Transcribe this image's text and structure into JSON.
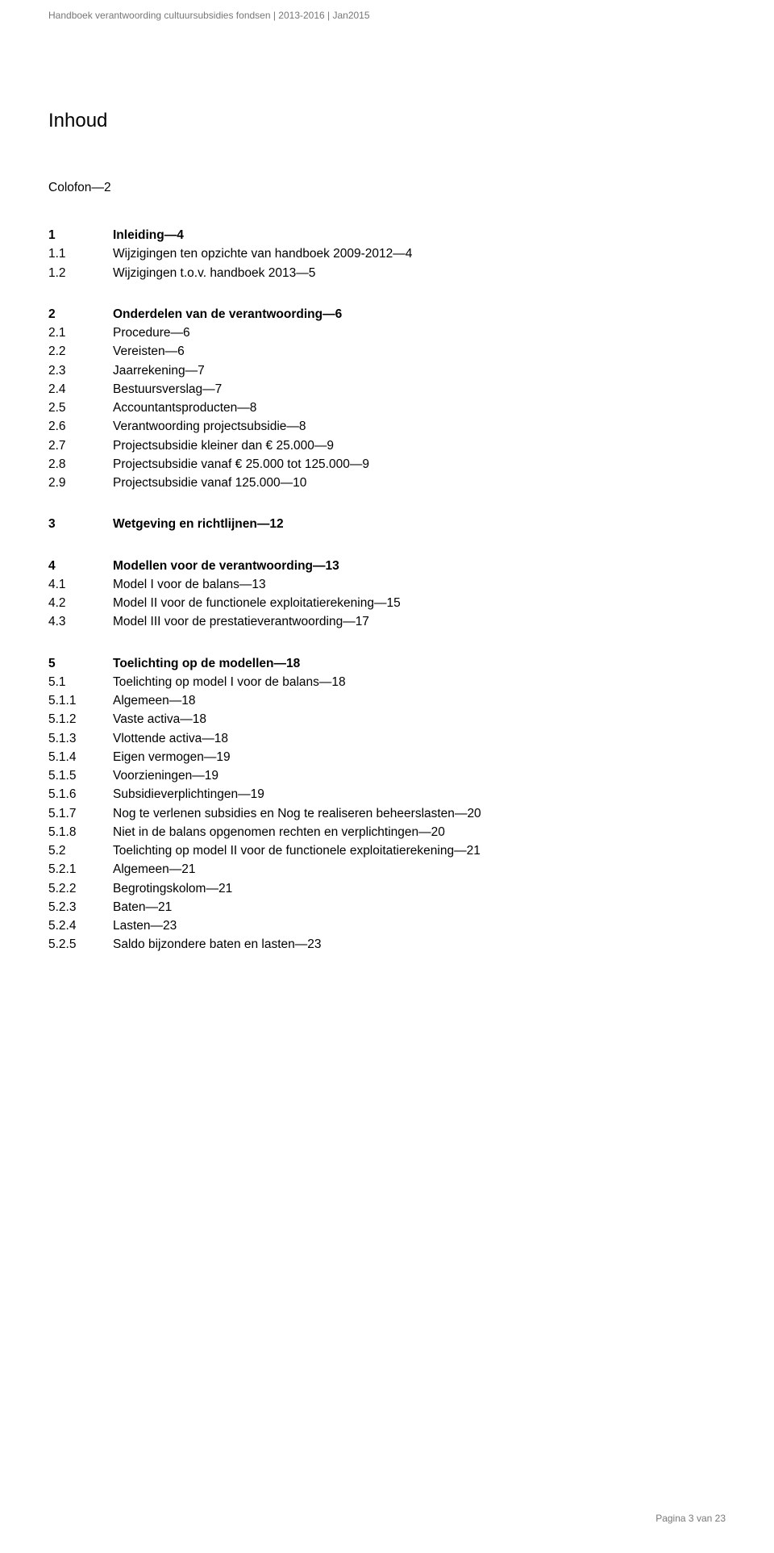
{
  "header": {
    "text": "Handboek verantwoording cultuursubsidies fondsen | 2013-2016 | Jan2015"
  },
  "heading": "Inhoud",
  "colofon": {
    "label": "Colofon",
    "page": "2"
  },
  "toc": [
    {
      "items": [
        {
          "num": "1",
          "text": "Inleiding",
          "page": "4",
          "bold": true
        },
        {
          "num": "1.1",
          "text": "Wijzigingen ten opzichte van handboek 2009-2012",
          "page": "4"
        },
        {
          "num": "1.2",
          "text": "Wijzigingen t.o.v. handboek 2013",
          "page": "5"
        }
      ]
    },
    {
      "items": [
        {
          "num": "2",
          "text": "Onderdelen van de verantwoording",
          "page": "6",
          "bold": true
        },
        {
          "num": "2.1",
          "text": "Procedure",
          "page": "6"
        },
        {
          "num": "2.2",
          "text": "Vereisten",
          "page": "6"
        },
        {
          "num": "2.3",
          "text": "Jaarrekening",
          "page": "7"
        },
        {
          "num": "2.4",
          "text": "Bestuursverslag",
          "page": "7"
        },
        {
          "num": "2.5",
          "text": "Accountantsproducten",
          "page": "8"
        },
        {
          "num": "2.6",
          "text": "Verantwoording projectsubsidie",
          "page": "8"
        },
        {
          "num": "2.7",
          "text": "Projectsubsidie kleiner dan € 25.000",
          "page": "9"
        },
        {
          "num": "2.8",
          "text": "Projectsubsidie vanaf € 25.000 tot 125.000",
          "page": "9"
        },
        {
          "num": "2.9",
          "text": "Projectsubsidie vanaf 125.000",
          "page": "10"
        }
      ]
    },
    {
      "items": [
        {
          "num": "3",
          "text": "Wetgeving en richtlijnen",
          "page": "12",
          "bold": true
        }
      ]
    },
    {
      "items": [
        {
          "num": "4",
          "text": "Modellen voor de verantwoording",
          "page": "13",
          "bold": true
        },
        {
          "num": "4.1",
          "text": "Model I voor de balans",
          "page": "13"
        },
        {
          "num": "4.2",
          "text": "Model II voor de functionele exploitatierekening",
          "page": "15"
        },
        {
          "num": "4.3",
          "text": "Model III voor de prestatieverantwoording",
          "page": "17"
        }
      ]
    },
    {
      "items": [
        {
          "num": "5",
          "text": "Toelichting op de modellen",
          "page": "18",
          "bold": true
        },
        {
          "num": "5.1",
          "text": "Toelichting op model I voor de balans",
          "page": "18"
        },
        {
          "num": "5.1.1",
          "text": "Algemeen",
          "page": "18"
        },
        {
          "num": "5.1.2",
          "text": "Vaste activa",
          "page": "18"
        },
        {
          "num": "5.1.3",
          "text": "Vlottende activa",
          "page": "18"
        },
        {
          "num": "5.1.4",
          "text": "Eigen vermogen",
          "page": "19"
        },
        {
          "num": "5.1.5",
          "text": "Voorzieningen",
          "page": "19"
        },
        {
          "num": "5.1.6",
          "text": "Subsidieverplichtingen",
          "page": "19"
        },
        {
          "num": "5.1.7",
          "text": "Nog te verlenen subsidies en Nog te realiseren beheerslasten",
          "page": "20"
        },
        {
          "num": "5.1.8",
          "text": "Niet in de balans opgenomen rechten en verplichtingen",
          "page": "20"
        },
        {
          "num": "5.2",
          "text": "Toelichting op model II voor de functionele exploitatierekening",
          "page": "21"
        },
        {
          "num": "5.2.1",
          "text": "Algemeen",
          "page": "21"
        },
        {
          "num": "5.2.2",
          "text": "Begrotingskolom",
          "page": "21"
        },
        {
          "num": "5.2.3",
          "text": "Baten",
          "page": "21"
        },
        {
          "num": "5.2.4",
          "text": "Lasten",
          "page": "23"
        },
        {
          "num": "5.2.5",
          "text": "Saldo bijzondere baten en lasten",
          "page": "23"
        }
      ]
    }
  ],
  "footer": {
    "label": "Pagina",
    "current": "3",
    "sep": "van",
    "total": "23"
  }
}
